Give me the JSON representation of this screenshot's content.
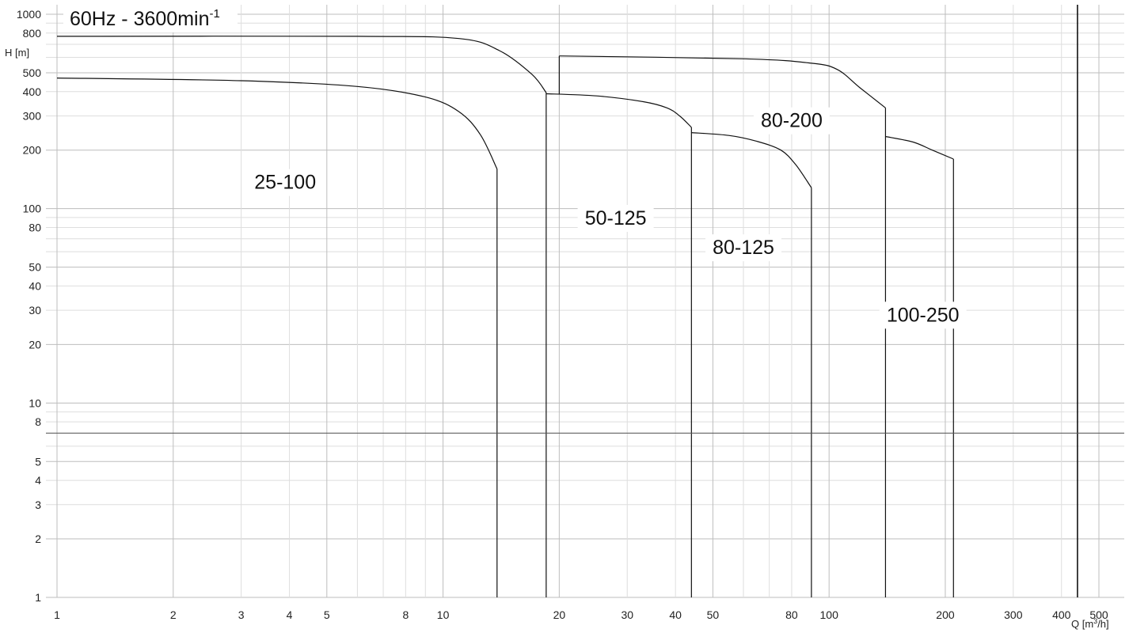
{
  "chart_data": {
    "type": "line",
    "title": "60Hz - 3600min",
    "title_superscript": "-1",
    "xlabel": "Q [m",
    "xlabel_sup": "3",
    "xlabel_end": "/h]",
    "ylabel": "H [m]",
    "x_scale": "log",
    "y_scale": "log",
    "xlim": [
      1,
      500
    ],
    "ylim": [
      1,
      1000
    ],
    "grid": true,
    "xticks": [
      1,
      2,
      3,
      4,
      5,
      8,
      10,
      20,
      30,
      40,
      50,
      80,
      100,
      200,
      300,
      400,
      500
    ],
    "yticks": [
      1000,
      800,
      500,
      400,
      300,
      200,
      100,
      80,
      50,
      40,
      30,
      20,
      10,
      8,
      5,
      4,
      3,
      2,
      1
    ],
    "series": [
      {
        "name": "25-100",
        "label_at": [
          3.9,
          130
        ],
        "points": [
          [
            1,
            470
          ],
          [
            3,
            455
          ],
          [
            6,
            425
          ],
          [
            9,
            375
          ],
          [
            11,
            315
          ],
          [
            12.5,
            240
          ],
          [
            13.8,
            160
          ]
        ],
        "q_max": 13.8
      },
      {
        "name": "50-125",
        "label_at": [
          28,
          85
        ],
        "points": [
          [
            18.5,
            390
          ],
          [
            25,
            380
          ],
          [
            33,
            355
          ],
          [
            38,
            330
          ],
          [
            41,
            300
          ],
          [
            44,
            262
          ]
        ],
        "q_max": 44
      },
      {
        "name": "80-125",
        "label_at": [
          60,
          60
        ],
        "points": [
          [
            44,
            246
          ],
          [
            55,
            238
          ],
          [
            65,
            222
          ],
          [
            75,
            200
          ],
          [
            82,
            168
          ],
          [
            90,
            128
          ]
        ],
        "q_max": 90
      },
      {
        "name": "80-200",
        "label_at": [
          80,
          270
        ],
        "points": [
          [
            1,
            770
          ],
          [
            6,
            770
          ],
          [
            11,
            750
          ],
          [
            14,
            650
          ],
          [
            17,
            490
          ],
          [
            18.5,
            395
          ]
        ],
        "q_max": 18.5
      },
      {
        "name": "80-200",
        "label_at": null,
        "points": [
          [
            20,
            610
          ],
          [
            60,
            590
          ],
          [
            90,
            560
          ],
          [
            105,
            520
          ],
          [
            120,
            420
          ],
          [
            140,
            330
          ]
        ],
        "q_max": 140,
        "q_min": 20
      },
      {
        "name": "100-250",
        "label_at": [
          175,
          27
        ],
        "points": [
          [
            140,
            235
          ],
          [
            165,
            220
          ],
          [
            185,
            200
          ],
          [
            210,
            180
          ]
        ],
        "q_max": 210
      }
    ],
    "reference_lines": {
      "vertical_q": 440,
      "horizontal_h": 7
    }
  }
}
